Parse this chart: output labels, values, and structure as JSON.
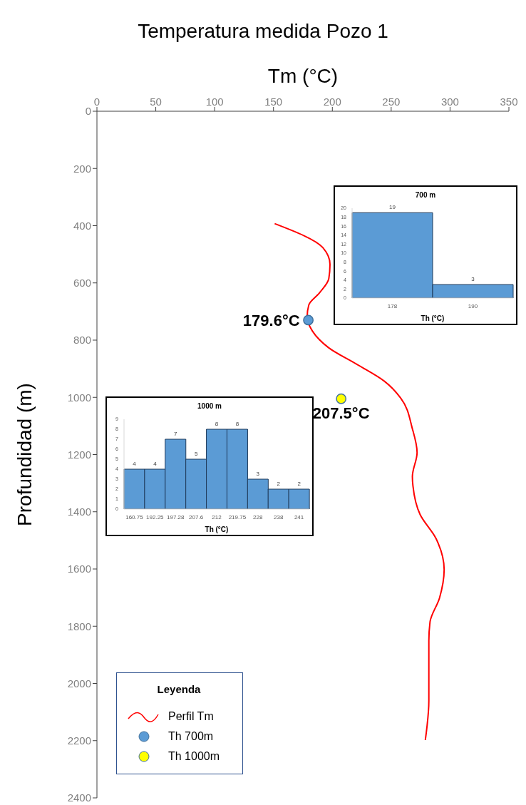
{
  "chart_data": [
    {
      "type": "line",
      "title": "Temperatura medida Pozo 1",
      "xlabel": "Tm (°C)",
      "ylabel": "Profundidad (m)",
      "legend_title": "Leyenda",
      "legend": "bottom left",
      "xlim": [
        0,
        350
      ],
      "xticks": [
        0,
        50,
        100,
        150,
        200,
        250,
        300,
        350
      ],
      "ylim": [
        2400,
        0
      ],
      "yticks": [
        0,
        200,
        400,
        600,
        800,
        1000,
        1200,
        1400,
        1600,
        1800,
        2000,
        2200,
        2400
      ],
      "line_style": "solid",
      "series": [
        {
          "name": "Perfil Tm",
          "type": "line",
          "marker": "none",
          "color": "#ff0000",
          "x": [
            151,
            192,
            198,
            197,
            189,
            180,
            178.6,
            183,
            197,
            221,
            244,
            258,
            268,
            272,
            268,
            268.5,
            274.6,
            288,
            295,
            291,
            283,
            282,
            282,
            279
          ],
          "values": [
            393,
            477,
            535,
            585,
            635,
            677,
            718,
            768,
            827,
            885,
            943,
            1002,
            1110,
            1193,
            1277,
            1310,
            1410,
            1493,
            1602,
            1702,
            1785,
            1852,
            2060,
            2198
          ]
        },
        {
          "name": "Th 700m",
          "type": "scatter",
          "marker": "circle",
          "color": "#5b9bd5",
          "x": [
            179.6
          ],
          "values": [
            730
          ]
        },
        {
          "name": "Th 1000m",
          "type": "scatter",
          "marker": "circle",
          "color": "#ffff00",
          "x": [
            207.5
          ],
          "values": [
            1005
          ]
        }
      ],
      "annotations": [
        {
          "text": "179.6°C",
          "x": 179.6,
          "y": 730
        },
        {
          "text": "207.5°C",
          "x": 207.5,
          "y": 1005
        }
      ]
    },
    {
      "type": "bar",
      "title": "700 m",
      "xlabel": "Th (°C)",
      "categories": [
        "178",
        "190"
      ],
      "values": [
        19,
        3
      ],
      "color": "#5b9bd5",
      "ylim": [
        0,
        20
      ],
      "yticks": [
        0,
        2,
        4,
        6,
        8,
        10,
        12,
        14,
        16,
        18,
        20
      ],
      "data_labels": true
    },
    {
      "type": "bar",
      "title": "1000 m",
      "xlabel": "Th (°C)",
      "categories": [
        "160.75",
        "192.25",
        "197.28",
        "207.6",
        "212",
        "219.75",
        "228",
        "238",
        "241"
      ],
      "values": [
        4,
        4,
        7,
        5,
        8,
        8,
        3,
        2,
        2
      ],
      "color": "#5b9bd5",
      "ylim": [
        0,
        9
      ],
      "yticks": [
        0,
        1,
        2,
        3,
        4,
        5,
        6,
        7,
        8,
        9
      ],
      "data_labels": true
    }
  ]
}
